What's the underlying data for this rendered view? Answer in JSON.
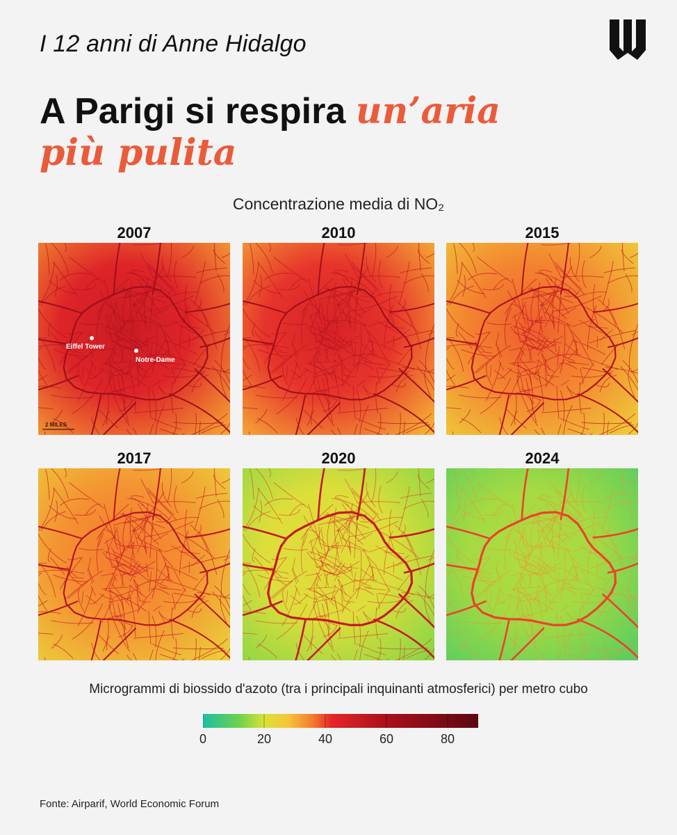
{
  "kicker": "I 12 anni di Anne Hidalgo",
  "headline": {
    "main": "A Parigi si respira ",
    "accent_line1": "un’aria",
    "accent_line2": "più pulita"
  },
  "subtitle": "Concentrazione media di NO₂",
  "colors": {
    "accent": "#ea5b3a",
    "background": "#f4f3f3",
    "text": "#111111"
  },
  "maps": [
    {
      "year": "2007",
      "background_level": 38,
      "road_level": 58,
      "center_hotspot": 50
    },
    {
      "year": "2010",
      "background_level": 36,
      "road_level": 56,
      "center_hotspot": 46
    },
    {
      "year": "2015",
      "background_level": 32,
      "road_level": 52,
      "center_hotspot": 38
    },
    {
      "year": "2017",
      "background_level": 31,
      "road_level": 50,
      "center_hotspot": 36
    },
    {
      "year": "2020",
      "background_level": 20,
      "road_level": 46,
      "center_hotspot": 22
    },
    {
      "year": "2024",
      "background_level": 15,
      "road_level": 34,
      "center_hotspot": 17
    }
  ],
  "map_labels": {
    "eiffel": "Eiffel Tower",
    "notre_dame": "Notre-Dame",
    "scale": "2 MILES"
  },
  "caption": "Microgrammi di biossido d'azoto (tra i principali inquinanti atmosferici) per metro cubo",
  "legend": {
    "ticks": [
      "0",
      "20",
      "40",
      "60",
      "80"
    ],
    "stops": [
      {
        "value": 0,
        "color": "#1abfa6"
      },
      {
        "value": 12,
        "color": "#6fd24a"
      },
      {
        "value": 20,
        "color": "#d9e23a"
      },
      {
        "value": 28,
        "color": "#f6c43a"
      },
      {
        "value": 36,
        "color": "#f37a2e"
      },
      {
        "value": 42,
        "color": "#e5262a"
      },
      {
        "value": 60,
        "color": "#a8101c"
      },
      {
        "value": 90,
        "color": "#5e0612"
      }
    ]
  },
  "source": "Fonte: Airparif, World Economic Forum"
}
